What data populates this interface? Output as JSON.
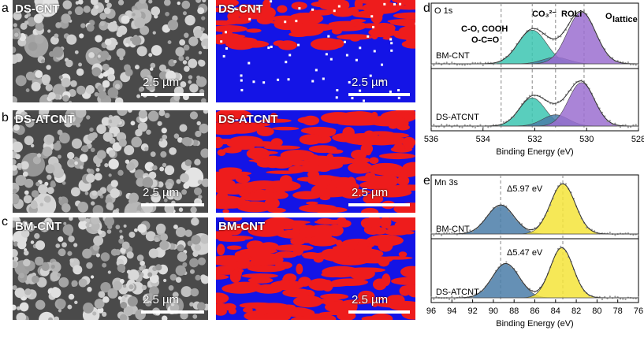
{
  "panels": {
    "a": {
      "label": "a",
      "left_title": "DS-CNT",
      "right_title": "DS-CNT",
      "scale": "2.5 µm"
    },
    "b": {
      "label": "b",
      "left_title": "DS-ATCNT",
      "right_title": "DS-ATCNT",
      "scale": "2.5 µm"
    },
    "c": {
      "label": "c",
      "left_title": "BM-CNT",
      "right_title": "BM-CNT",
      "scale": "2.5 µm"
    },
    "d": {
      "label": "d",
      "title": "O 1s",
      "ann1": "C-O, COOH",
      "ann2": "O-C=O",
      "ann3": "CO₃²⁻",
      "ann4": "ROLi",
      "ann5": "O",
      "ann5sub": "lattice",
      "sample_top": "BM-CNT",
      "sample_bot": "DS-ATCNT",
      "xlabel": "Binding Energy (eV)"
    },
    "e": {
      "label": "e",
      "title": "Mn 3s",
      "ann_top": "Δ5.97 eV",
      "ann_bot": "Δ5.47 eV",
      "sample_top": "BM-CNT",
      "sample_bot": "DS-ATCNT",
      "xlabel": "Binding Energy (eV)"
    }
  },
  "colors": {
    "blue": "#1414e6",
    "red": "#ee1c1c",
    "teal": "#3cc6b2",
    "purple": "#9b6fd0",
    "steel": "#4a7ca8",
    "yellow": "#f5e43a",
    "green_text": "#18896a",
    "navy_text": "#2c3a8c",
    "purple_text": "#8a57c3"
  },
  "chart_data": [
    {
      "type": "line",
      "title": "O 1s",
      "xlabel": "Binding Energy (eV)",
      "xlim": [
        536,
        528
      ],
      "xticks": [
        "536",
        "534",
        "532",
        "530",
        "528"
      ],
      "series": [
        {
          "name": "BM-CNT"
        },
        {
          "name": "DS-ATCNT"
        }
      ],
      "peaks_eV": {
        "C-O, COOH / O-C=O": 533.3,
        "CO₃²⁻": 532.1,
        "ROLi": 531.2,
        "O lattice": 530.1
      }
    },
    {
      "type": "line",
      "title": "Mn 3s",
      "xlabel": "Binding Energy (eV)",
      "xlim": [
        96,
        76
      ],
      "xticks": [
        "96",
        "94",
        "92",
        "90",
        "88",
        "86",
        "84",
        "82",
        "80",
        "78",
        "76"
      ],
      "series": [
        {
          "name": "BM-CNT",
          "splitting_eV": 5.97
        },
        {
          "name": "DS-ATCNT",
          "splitting_eV": 5.47
        }
      ]
    }
  ]
}
